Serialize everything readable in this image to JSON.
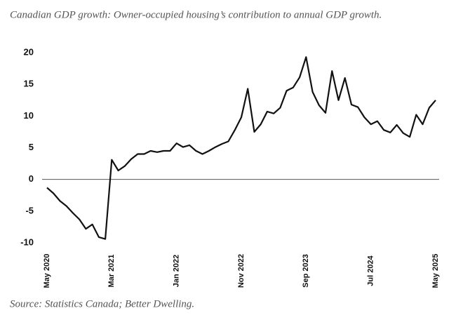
{
  "chart_data": {
    "type": "line",
    "title": "Canadian GDP growth: Owner-occupied housing’s contribution to annual GDP growth.",
    "source": "Source: Statistics Canada; Better Dwelling.",
    "categories": [
      "May 2020",
      null,
      null,
      null,
      null,
      null,
      null,
      null,
      null,
      null,
      "Mar 2021",
      null,
      null,
      null,
      null,
      null,
      null,
      null,
      null,
      null,
      "Jan 2022",
      null,
      null,
      null,
      null,
      null,
      null,
      null,
      null,
      null,
      "Nov 2022",
      null,
      null,
      null,
      null,
      null,
      null,
      null,
      null,
      null,
      "Sep 2023",
      null,
      null,
      null,
      null,
      null,
      null,
      null,
      null,
      null,
      "Jul 2024",
      null,
      null,
      null,
      null,
      null,
      null,
      null,
      null,
      null,
      "May 2025"
    ],
    "values": [
      -1.3,
      -2.2,
      -3.4,
      -4.2,
      -5.3,
      -6.3,
      -7.8,
      -7.1,
      -9.1,
      -9.4,
      3.1,
      1.4,
      2.1,
      3.2,
      4.0,
      4.0,
      4.5,
      4.3,
      4.5,
      4.5,
      5.7,
      5.1,
      5.4,
      4.5,
      4.0,
      4.5,
      5.1,
      5.6,
      6.0,
      7.8,
      9.8,
      14.3,
      7.5,
      8.7,
      10.7,
      10.4,
      11.3,
      14.0,
      14.5,
      16.1,
      19.3,
      13.8,
      11.7,
      10.5,
      17.1,
      12.5,
      16.0,
      11.8,
      11.4,
      9.8,
      8.7,
      9.2,
      7.8,
      7.4,
      8.6,
      7.3,
      6.7,
      10.2,
      8.7,
      11.3,
      12.5
    ],
    "color": "#111111",
    "ylim": [
      -10,
      20
    ],
    "yticks": [
      -10,
      -5,
      0,
      5,
      10,
      15,
      20
    ],
    "grid": false
  }
}
